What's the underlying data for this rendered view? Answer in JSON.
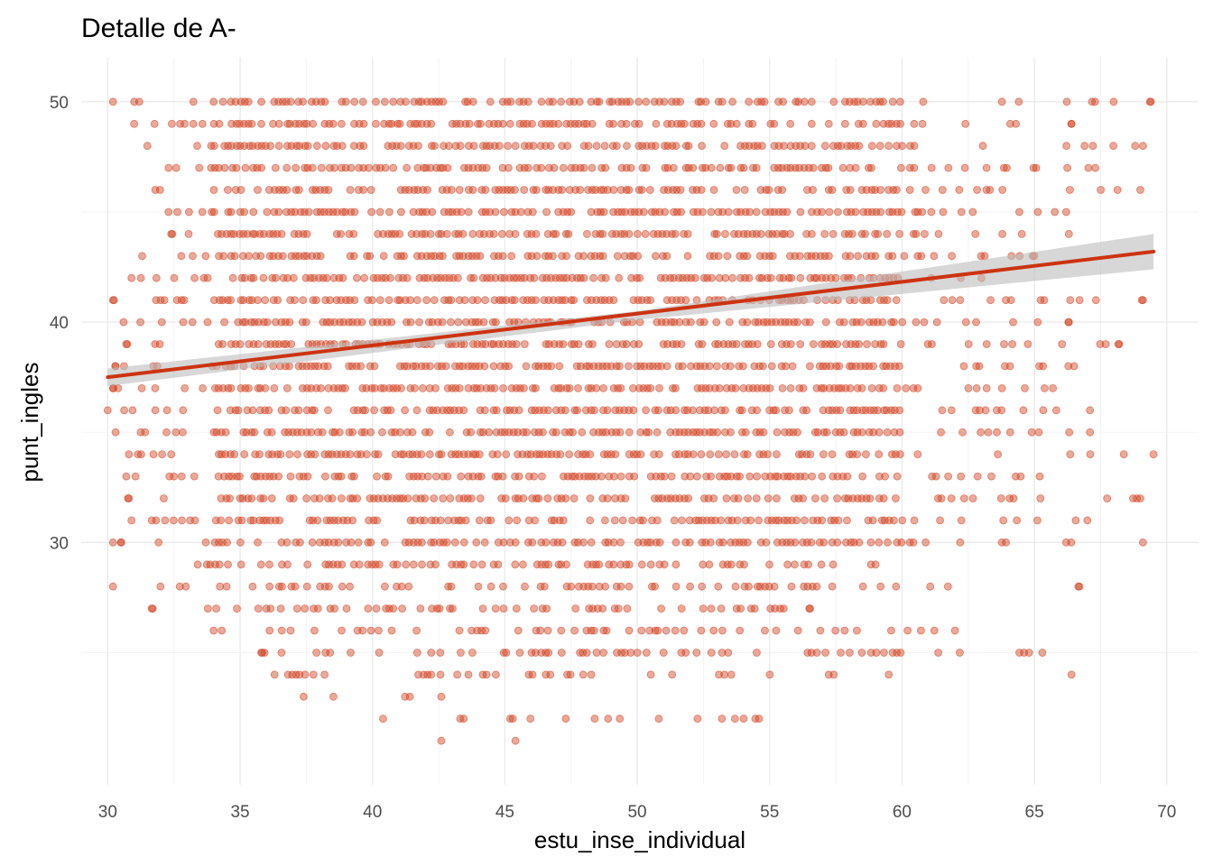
{
  "chart_data": {
    "type": "scatter",
    "title": "Detalle de A-",
    "xlabel": "estu_inse_individual",
    "ylabel": "punt_ingles",
    "xlim": [
      29,
      71.2
    ],
    "ylim": [
      19,
      52
    ],
    "x_ticks": [
      30,
      35,
      40,
      45,
      50,
      55,
      60,
      65,
      70
    ],
    "x_tick_labels": [
      "30",
      "35",
      "40",
      "45",
      "50",
      "55",
      "60",
      "65",
      "70"
    ],
    "y_ticks": [
      30,
      40,
      50
    ],
    "y_tick_labels": [
      "30",
      "40",
      "50"
    ],
    "grid": true,
    "point_color": "#d0401f",
    "point_alpha": 0.45,
    "trend_color": "#cc3311",
    "ribbon_color": "#bdbdbd",
    "trend_line": {
      "x": [
        30.0,
        69.5
      ],
      "y": [
        37.5,
        43.2
      ]
    },
    "confidence_band": {
      "x": [
        30.0,
        50.0,
        69.5
      ],
      "lower": [
        37.1,
        40.1,
        42.4
      ],
      "upper": [
        37.9,
        40.5,
        44.0
      ]
    },
    "point_rows": [
      {
        "y": 50,
        "x_min": 30.2,
        "x_max": 69.4,
        "density": 0.8,
        "extremes": [
          30.2,
          31.0,
          34.0,
          69.4
        ]
      },
      {
        "y": 49,
        "x_min": 31.0,
        "x_max": 66.4,
        "density": 0.8,
        "extremes": [
          31.0,
          66.4
        ]
      },
      {
        "y": 48,
        "x_min": 31.5,
        "x_max": 69.1,
        "density": 0.85,
        "extremes": [
          31.5,
          69.1
        ]
      },
      {
        "y": 47,
        "x_min": 32.3,
        "x_max": 67.3,
        "density": 0.8,
        "extremes": [
          32.3,
          67.3
        ]
      },
      {
        "y": 46,
        "x_min": 31.8,
        "x_max": 69.0,
        "density": 0.85,
        "extremes": [
          31.8,
          69.0
        ]
      },
      {
        "y": 45,
        "x_min": 32.3,
        "x_max": 66.2,
        "density": 0.9,
        "extremes": [
          32.3,
          66.2
        ]
      },
      {
        "y": 44,
        "x_min": 32.4,
        "x_max": 66.3,
        "density": 0.9,
        "extremes": [
          32.4,
          66.3
        ]
      },
      {
        "y": 43,
        "x_min": 31.3,
        "x_max": 65.0,
        "density": 0.85,
        "extremes": [
          31.3,
          65.0
        ]
      },
      {
        "y": 42,
        "x_min": 30.9,
        "x_max": 63.0,
        "density": 0.9,
        "extremes": [
          30.9,
          63.0
        ]
      },
      {
        "y": 41,
        "x_min": 30.2,
        "x_max": 69.1,
        "density": 0.9,
        "extremes": [
          30.2,
          69.1
        ]
      },
      {
        "y": 40,
        "x_min": 30.6,
        "x_max": 66.3,
        "density": 0.85,
        "extremes": [
          30.6,
          66.3
        ]
      },
      {
        "y": 39,
        "x_min": 30.7,
        "x_max": 68.2,
        "density": 0.9,
        "extremes": [
          30.7,
          68.2
        ]
      },
      {
        "y": 38,
        "x_min": 30.3,
        "x_max": 66.5,
        "density": 0.9,
        "extremes": [
          30.3,
          66.5
        ]
      },
      {
        "y": 37,
        "x_min": 30.2,
        "x_max": 65.7,
        "density": 0.9,
        "extremes": [
          30.2,
          65.7
        ]
      },
      {
        "y": 36,
        "x_min": 30.0,
        "x_max": 67.1,
        "density": 0.9,
        "extremes": [
          30.0,
          67.1
        ]
      },
      {
        "y": 35,
        "x_min": 30.3,
        "x_max": 67.1,
        "density": 0.9,
        "extremes": [
          30.3,
          67.1
        ]
      },
      {
        "y": 34,
        "x_min": 30.8,
        "x_max": 69.5,
        "density": 0.85,
        "extremes": [
          30.8,
          69.5
        ]
      },
      {
        "y": 33,
        "x_min": 30.7,
        "x_max": 65.2,
        "density": 0.8,
        "extremes": [
          30.7,
          65.2
        ]
      },
      {
        "y": 32,
        "x_min": 30.8,
        "x_max": 69.0,
        "density": 0.8,
        "extremes": [
          30.8,
          69.0
        ]
      },
      {
        "y": 31,
        "x_min": 30.9,
        "x_max": 67.0,
        "density": 0.75,
        "extremes": [
          30.9,
          67.0
        ]
      },
      {
        "y": 30,
        "x_min": 30.2,
        "x_max": 69.1,
        "density": 0.75,
        "extremes": [
          30.2,
          30.5,
          69.1
        ]
      },
      {
        "y": 29,
        "x_min": 33.4,
        "x_max": 59.0,
        "density": 0.7,
        "extremes": [
          33.4,
          59.0
        ]
      },
      {
        "y": 28,
        "x_min": 30.2,
        "x_max": 66.7,
        "density": 0.5,
        "extremes": [
          30.2,
          66.7
        ]
      },
      {
        "y": 27,
        "x_min": 31.7,
        "x_max": 56.5,
        "density": 0.55,
        "extremes": [
          31.7,
          56.5
        ]
      },
      {
        "y": 26,
        "x_min": 34.0,
        "x_max": 62.0,
        "density": 0.45,
        "extremes": [
          34.0,
          62.0
        ]
      },
      {
        "y": 25,
        "x_min": 35.8,
        "x_max": 65.3,
        "density": 0.45,
        "extremes": [
          35.8,
          65.3
        ]
      },
      {
        "y": 24,
        "x_min": 36.3,
        "x_max": 66.4,
        "density": 0.25,
        "extremes": [
          36.3,
          66.4
        ]
      },
      {
        "y": 23,
        "x_min": 37.4,
        "x_max": 42.6,
        "density": 0.12,
        "extremes": [
          37.4,
          42.6
        ]
      },
      {
        "y": 22,
        "x_min": 40.4,
        "x_max": 54.6,
        "density": 0.1,
        "extremes": [
          40.4,
          45.3,
          48.9,
          53.2,
          54.6
        ]
      },
      {
        "y": 21,
        "x_min": 42.6,
        "x_max": 45.4,
        "density": 0.05,
        "extremes": [
          42.6,
          45.4
        ]
      }
    ]
  }
}
